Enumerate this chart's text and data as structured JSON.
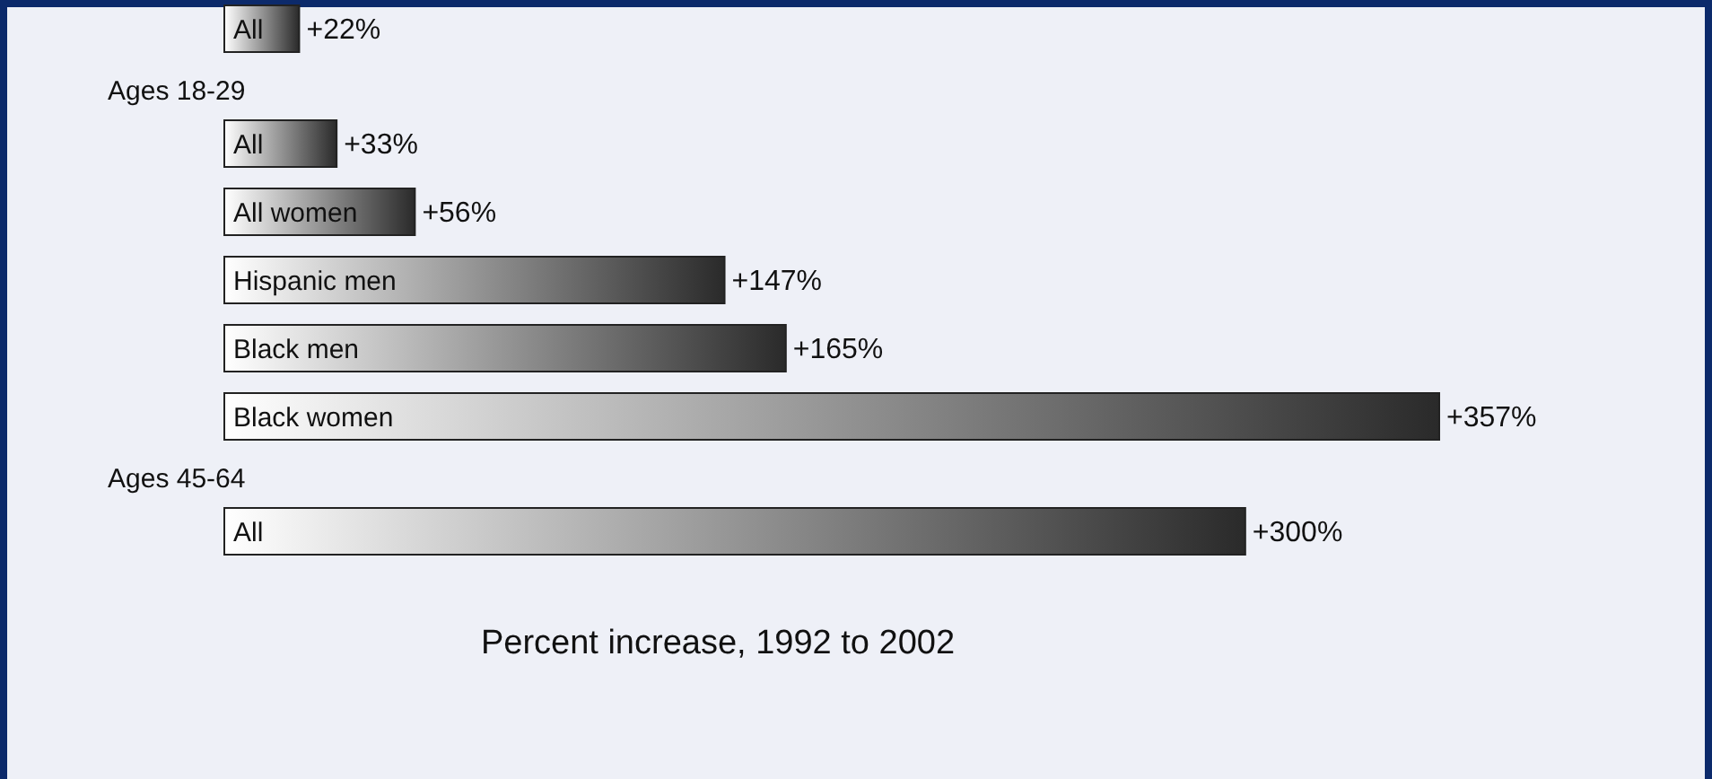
{
  "chart_data": {
    "type": "bar",
    "orientation": "horizontal",
    "xlabel": "Percent increase, 1992 to 2002",
    "categories": [
      "All",
      "All",
      "All women",
      "Hispanic men",
      "Black men",
      "Black women",
      "All"
    ],
    "values": [
      22,
      33,
      56,
      147,
      165,
      357,
      300
    ],
    "value_labels": [
      "+22%",
      "+33%",
      "+56%",
      "+147%",
      "+165%",
      "+357%",
      "+300%"
    ],
    "color": "#2a2a2a",
    "annotations": [
      "Ages 18-29",
      "Ages 45-64"
    ]
  }
}
